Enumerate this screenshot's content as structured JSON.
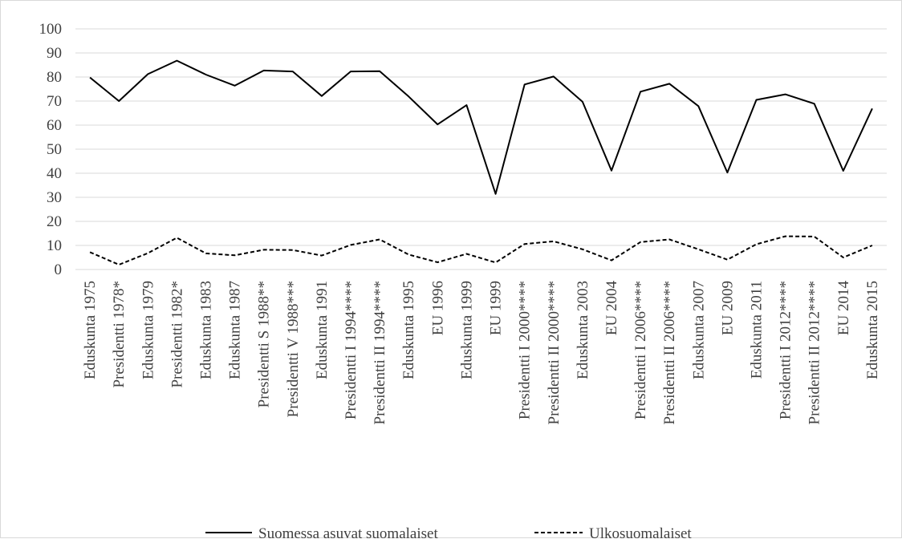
{
  "chart_data": {
    "type": "line",
    "title": "",
    "xlabel": "",
    "ylabel": "",
    "ylim": [
      0,
      100
    ],
    "yticks": [
      0,
      10,
      20,
      30,
      40,
      50,
      60,
      70,
      80,
      90,
      100
    ],
    "grid": true,
    "legend_position": "bottom",
    "categories": [
      "Eduskunta 1975",
      "Presidentti 1978*",
      "Eduskunta 1979",
      "Presidentti 1982*",
      "Eduskunta 1983",
      "Eduskunta 1987",
      "Presidentti S 1988**",
      "Presidentti V 1988***",
      "Eduskunta 1991",
      "Presidentti I 1994****",
      "Presidentti II 1994****",
      "Eduskunta 1995",
      "EU 1996",
      "Eduskunta 1999",
      "EU 1999",
      "Presidentti I 2000****",
      "Presidentti II 2000****",
      "Eduskunta 2003",
      "EU 2004",
      "Presidentti I 2006****",
      "Presidentti II 2006****",
      "Eduskunta 2007",
      "EU 2009",
      "Eduskunta 2011",
      "Presidentti I 2012****",
      "Presidentti II 2012****",
      "EU 2014",
      "Eduskunta 2015"
    ],
    "series": [
      {
        "name": "Suomessa asuvat suomalaiset",
        "style": "solid",
        "color": "#000000",
        "values": [
          79.8,
          70.0,
          81.2,
          86.8,
          81.0,
          76.4,
          82.7,
          82.3,
          72.1,
          82.3,
          82.4,
          71.9,
          60.3,
          68.3,
          31.4,
          76.9,
          80.2,
          69.7,
          41.1,
          73.9,
          77.2,
          67.9,
          40.3,
          70.5,
          72.8,
          68.9,
          41.0,
          66.9
        ]
      },
      {
        "name": "Ulkosuomalaiset",
        "style": "dashed",
        "color": "#000000",
        "values": [
          7.2,
          2.0,
          6.8,
          13.2,
          6.7,
          5.9,
          8.2,
          8.1,
          5.8,
          10.2,
          12.5,
          6.2,
          3.0,
          6.5,
          2.9,
          10.6,
          11.7,
          8.4,
          3.8,
          11.4,
          12.5,
          8.4,
          4.1,
          10.5,
          13.8,
          13.7,
          5.0,
          10.0
        ]
      }
    ]
  }
}
